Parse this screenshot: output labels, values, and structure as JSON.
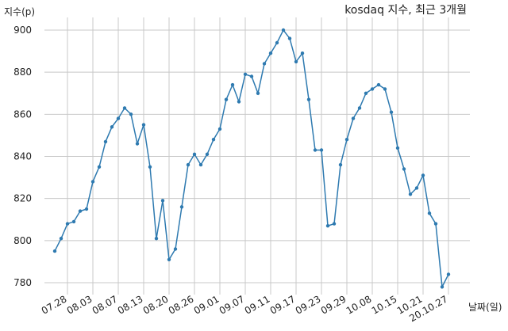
{
  "chart_data": {
    "type": "line",
    "title": "kosdaq 지수, 최근 3개월",
    "ylabel": "지수(p)",
    "xlabel": "날짜(일)",
    "ylim": [
      770,
      904
    ],
    "yticks": [
      780,
      800,
      820,
      840,
      860,
      880,
      900
    ],
    "grid": true,
    "color": "#2e7ab0",
    "xtick_labels": [
      "07.28",
      "08.03",
      "08.07",
      "08.13",
      "08.20",
      "08.26",
      "09.01",
      "09.07",
      "09.11",
      "09.17",
      "09.23",
      "09.29",
      "10.08",
      "10.15",
      "10.21",
      "20.10.27"
    ],
    "xtick_indices": [
      3,
      7,
      11,
      15,
      19,
      23,
      27,
      31,
      35,
      39,
      43,
      47,
      51,
      55,
      59,
      63
    ],
    "series": [
      {
        "values": [
          795,
          801,
          808,
          809,
          814,
          815,
          828,
          835,
          847,
          854,
          858,
          863,
          860,
          846,
          855,
          835,
          801,
          819,
          791,
          796,
          816,
          836,
          841,
          836,
          841,
          848,
          853,
          867,
          874,
          866,
          879,
          878,
          870,
          884,
          889,
          894,
          900,
          896,
          885,
          889,
          867,
          843,
          843,
          807,
          808,
          836,
          848,
          858,
          863,
          870,
          872,
          874,
          872,
          861,
          844,
          834,
          822,
          825,
          831,
          813,
          808,
          778,
          784
        ]
      }
    ]
  }
}
